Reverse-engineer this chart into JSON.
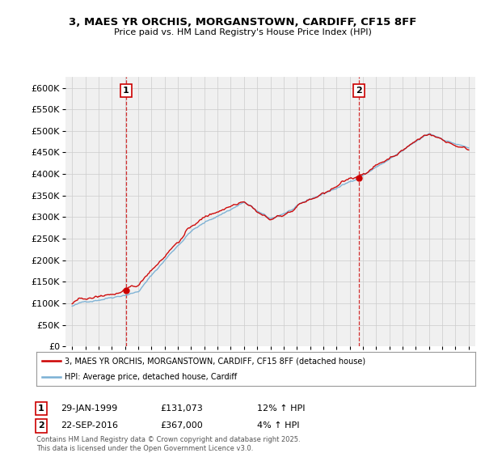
{
  "title": "3, MAES YR ORCHIS, MORGANSTOWN, CARDIFF, CF15 8FF",
  "subtitle": "Price paid vs. HM Land Registry's House Price Index (HPI)",
  "ylim": [
    0,
    625000
  ],
  "yticks": [
    0,
    50000,
    100000,
    150000,
    200000,
    250000,
    300000,
    350000,
    400000,
    450000,
    500000,
    550000,
    600000
  ],
  "legend_label_prop": "3, MAES YR ORCHIS, MORGANSTOWN, CARDIFF, CF15 8FF (detached house)",
  "legend_label_hpi": "HPI: Average price, detached house, Cardiff",
  "color_prop": "#cc0000",
  "color_hpi": "#7ab0d4",
  "marker1_date": "29-JAN-1999",
  "marker1_price": "£131,073",
  "marker1_hpi": "12% ↑ HPI",
  "marker2_date": "22-SEP-2016",
  "marker2_price": "£367,000",
  "marker2_hpi": "4% ↑ HPI",
  "footer": "Contains HM Land Registry data © Crown copyright and database right 2025.\nThis data is licensed under the Open Government Licence v3.0.",
  "bg_color": "#ffffff",
  "grid_color": "#cccccc",
  "plot_bg": "#f0f0f0"
}
